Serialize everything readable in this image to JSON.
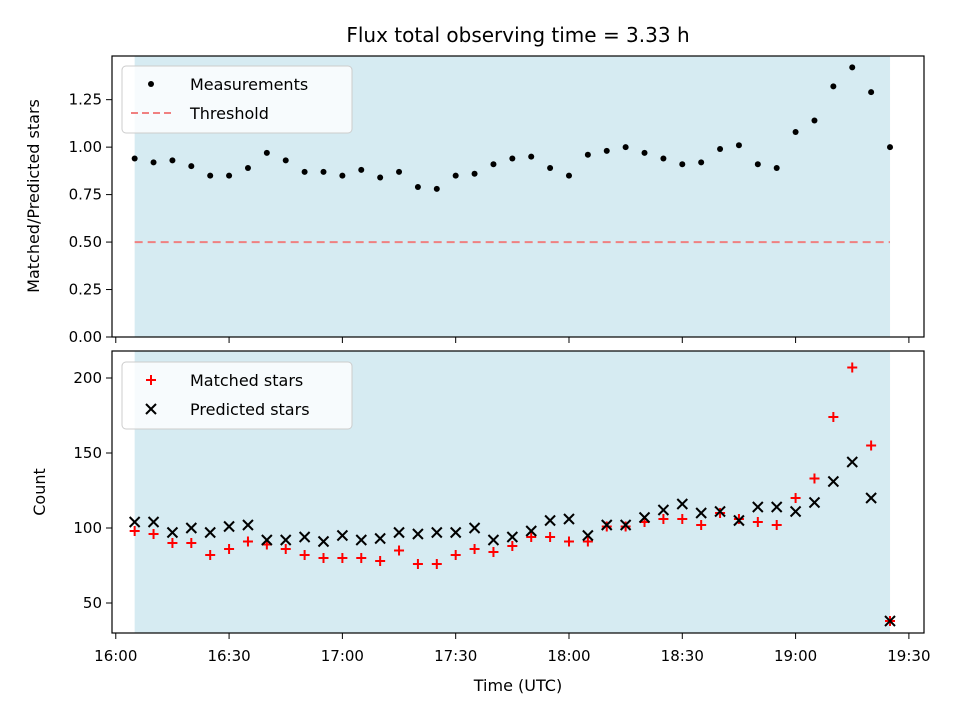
{
  "chart_data": [
    {
      "type": "scatter",
      "title": "Flux total observing time = 3.33 h",
      "ylabel": "Matched/Predicted stars",
      "xlabel": "",
      "xlim": [
        "15:59",
        "19:34"
      ],
      "ylim": [
        0,
        1.48
      ],
      "yticks": [
        "0.00",
        "0.25",
        "0.50",
        "0.75",
        "1.00",
        "1.25"
      ],
      "shaded_span": [
        "16:05",
        "19:25"
      ],
      "threshold": 0.5,
      "legend_position": "upper-left",
      "series": [
        {
          "name": "Measurements",
          "color": "#000000",
          "marker": "dot",
          "x": [
            "16:05",
            "16:10",
            "16:15",
            "16:20",
            "16:25",
            "16:30",
            "16:35",
            "16:40",
            "16:45",
            "16:50",
            "16:55",
            "17:00",
            "17:05",
            "17:10",
            "17:15",
            "17:20",
            "17:25",
            "17:30",
            "17:35",
            "17:40",
            "17:45",
            "17:50",
            "17:55",
            "18:00",
            "18:05",
            "18:10",
            "18:15",
            "18:20",
            "18:25",
            "18:30",
            "18:35",
            "18:40",
            "18:45",
            "18:50",
            "18:55",
            "19:00",
            "19:05",
            "19:10",
            "19:15",
            "19:20",
            "19:25"
          ],
          "y": [
            0.94,
            0.92,
            0.93,
            0.9,
            0.85,
            0.85,
            0.89,
            0.97,
            0.93,
            0.87,
            0.87,
            0.85,
            0.88,
            0.84,
            0.87,
            0.79,
            0.78,
            0.85,
            0.86,
            0.91,
            0.94,
            0.95,
            0.89,
            0.85,
            0.96,
            0.98,
            1.0,
            0.97,
            0.94,
            0.91,
            0.92,
            0.99,
            1.01,
            0.91,
            0.89,
            1.08,
            1.14,
            1.32,
            1.42,
            1.29,
            1.0
          ]
        },
        {
          "name": "Threshold",
          "color": "#f08080",
          "style": "dashed",
          "x": [
            "16:05",
            "19:25"
          ],
          "y": [
            0.5,
            0.5
          ]
        }
      ]
    },
    {
      "type": "scatter",
      "title": "",
      "ylabel": "Count",
      "xlabel": "Time (UTC)",
      "xlim": [
        "15:59",
        "19:34"
      ],
      "ylim": [
        30,
        218
      ],
      "yticks": [
        "50",
        "100",
        "150",
        "200"
      ],
      "xticks": [
        "16:00",
        "16:30",
        "17:00",
        "17:30",
        "18:00",
        "18:30",
        "19:00",
        "19:30"
      ],
      "shaded_span": [
        "16:05",
        "19:25"
      ],
      "legend_position": "upper-left",
      "series": [
        {
          "name": "Matched stars",
          "color": "#ff0000",
          "marker": "plus",
          "x": [
            "16:05",
            "16:10",
            "16:15",
            "16:20",
            "16:25",
            "16:30",
            "16:35",
            "16:40",
            "16:45",
            "16:50",
            "16:55",
            "17:00",
            "17:05",
            "17:10",
            "17:15",
            "17:20",
            "17:25",
            "17:30",
            "17:35",
            "17:40",
            "17:45",
            "17:50",
            "17:55",
            "18:00",
            "18:05",
            "18:10",
            "18:15",
            "18:20",
            "18:25",
            "18:30",
            "18:35",
            "18:40",
            "18:45",
            "18:50",
            "18:55",
            "19:00",
            "19:05",
            "19:10",
            "19:15",
            "19:20",
            "19:25"
          ],
          "y": [
            98,
            96,
            90,
            90,
            82,
            86,
            91,
            89,
            86,
            82,
            80,
            80,
            80,
            78,
            85,
            76,
            76,
            82,
            86,
            84,
            88,
            94,
            94,
            91,
            91,
            101,
            101,
            104,
            106,
            106,
            102,
            110,
            106,
            104,
            102,
            120,
            133,
            174,
            207,
            155,
            38
          ]
        },
        {
          "name": "Predicted stars",
          "color": "#000000",
          "marker": "x",
          "x": [
            "16:05",
            "16:10",
            "16:15",
            "16:20",
            "16:25",
            "16:30",
            "16:35",
            "16:40",
            "16:45",
            "16:50",
            "16:55",
            "17:00",
            "17:05",
            "17:10",
            "17:15",
            "17:20",
            "17:25",
            "17:30",
            "17:35",
            "17:40",
            "17:45",
            "17:50",
            "17:55",
            "18:00",
            "18:05",
            "18:10",
            "18:15",
            "18:20",
            "18:25",
            "18:30",
            "18:35",
            "18:40",
            "18:45",
            "18:50",
            "18:55",
            "19:00",
            "19:05",
            "19:10",
            "19:15",
            "19:20",
            "19:25"
          ],
          "y": [
            104,
            104,
            97,
            100,
            97,
            101,
            102,
            92,
            92,
            94,
            91,
            95,
            92,
            93,
            97,
            96,
            97,
            97,
            100,
            92,
            94,
            98,
            105,
            106,
            95,
            102,
            102,
            107,
            112,
            116,
            110,
            111,
            105,
            114,
            114,
            111,
            117,
            131,
            144,
            120,
            38
          ]
        }
      ]
    }
  ],
  "colors": {
    "shade": "#add8e6",
    "axes": "#000000",
    "legend_border": "#cccccc"
  }
}
